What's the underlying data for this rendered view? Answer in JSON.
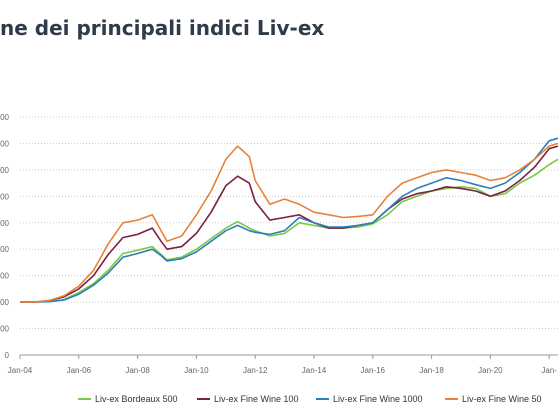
{
  "title": "ne dei principali indici Liv-ex",
  "colors": {
    "bordeaux500": "#7ac943",
    "fineWine100": "#7b1f45",
    "fineWine1000": "#2e7fb8",
    "fineWine50": "#e8823a",
    "grid": "#cccccc",
    "axis": "#999999"
  },
  "chart_data": {
    "type": "line",
    "title": "ne dei principali indici Liv-ex",
    "xlabel": "",
    "ylabel": "",
    "x_ticks": [
      "Jan-04",
      "Jan-06",
      "Jan-08",
      "Jan-10",
      "Jan-12",
      "Jan-14",
      "Jan-16",
      "Jan-18",
      "Jan-20",
      "Jan-"
    ],
    "y_ticks": [
      "0",
      "00",
      "00",
      "00",
      "00",
      "00",
      "00",
      "00",
      "00",
      "00"
    ],
    "xlim": [
      2004.0,
      2022.3
    ],
    "ylim": [
      0,
      450
    ],
    "grid": true,
    "legend": "bottom",
    "series": [
      {
        "name": "Liv-ex Bordeaux 500",
        "colorKey": "bordeaux500",
        "points": [
          [
            2004.0,
            100
          ],
          [
            2004.5,
            100
          ],
          [
            2005.0,
            101
          ],
          [
            2005.5,
            105
          ],
          [
            2006.0,
            118
          ],
          [
            2006.5,
            135
          ],
          [
            2007.0,
            160
          ],
          [
            2007.5,
            192
          ],
          [
            2008.0,
            198
          ],
          [
            2008.5,
            205
          ],
          [
            2008.8,
            190
          ],
          [
            2009.0,
            180
          ],
          [
            2009.5,
            185
          ],
          [
            2010.0,
            200
          ],
          [
            2010.5,
            220
          ],
          [
            2011.0,
            240
          ],
          [
            2011.4,
            252
          ],
          [
            2011.8,
            240
          ],
          [
            2012.0,
            235
          ],
          [
            2012.5,
            225
          ],
          [
            2013.0,
            230
          ],
          [
            2013.5,
            250
          ],
          [
            2014.0,
            245
          ],
          [
            2014.5,
            240
          ],
          [
            2015.0,
            240
          ],
          [
            2015.5,
            242
          ],
          [
            2016.0,
            248
          ],
          [
            2016.5,
            265
          ],
          [
            2017.0,
            290
          ],
          [
            2017.5,
            300
          ],
          [
            2018.0,
            310
          ],
          [
            2018.5,
            315
          ],
          [
            2019.0,
            318
          ],
          [
            2019.5,
            315
          ],
          [
            2020.0,
            300
          ],
          [
            2020.5,
            305
          ],
          [
            2021.0,
            325
          ],
          [
            2021.5,
            340
          ],
          [
            2022.0,
            360
          ],
          [
            2022.3,
            370
          ]
        ]
      },
      {
        "name": "Liv-ex Fine Wine 100",
        "colorKey": "fineWine100",
        "points": [
          [
            2004.0,
            100
          ],
          [
            2004.5,
            100
          ],
          [
            2005.0,
            103
          ],
          [
            2005.5,
            110
          ],
          [
            2006.0,
            125
          ],
          [
            2006.5,
            150
          ],
          [
            2007.0,
            190
          ],
          [
            2007.5,
            222
          ],
          [
            2008.0,
            228
          ],
          [
            2008.5,
            240
          ],
          [
            2008.8,
            215
          ],
          [
            2009.0,
            200
          ],
          [
            2009.5,
            205
          ],
          [
            2010.0,
            230
          ],
          [
            2010.5,
            270
          ],
          [
            2011.0,
            320
          ],
          [
            2011.4,
            338
          ],
          [
            2011.8,
            325
          ],
          [
            2012.0,
            290
          ],
          [
            2012.5,
            255
          ],
          [
            2013.0,
            260
          ],
          [
            2013.5,
            265
          ],
          [
            2014.0,
            250
          ],
          [
            2014.5,
            240
          ],
          [
            2015.0,
            240
          ],
          [
            2015.5,
            245
          ],
          [
            2016.0,
            250
          ],
          [
            2016.5,
            275
          ],
          [
            2017.0,
            295
          ],
          [
            2017.5,
            305
          ],
          [
            2018.0,
            310
          ],
          [
            2018.5,
            318
          ],
          [
            2019.0,
            315
          ],
          [
            2019.5,
            310
          ],
          [
            2020.0,
            300
          ],
          [
            2020.5,
            310
          ],
          [
            2021.0,
            330
          ],
          [
            2021.5,
            355
          ],
          [
            2022.0,
            390
          ],
          [
            2022.3,
            395
          ]
        ]
      },
      {
        "name": "Liv-ex Fine Wine 1000",
        "colorKey": "fineWine1000",
        "points": [
          [
            2004.0,
            100
          ],
          [
            2004.5,
            100
          ],
          [
            2005.0,
            101
          ],
          [
            2005.5,
            104
          ],
          [
            2006.0,
            115
          ],
          [
            2006.5,
            132
          ],
          [
            2007.0,
            155
          ],
          [
            2007.5,
            185
          ],
          [
            2008.0,
            192
          ],
          [
            2008.5,
            200
          ],
          [
            2008.8,
            188
          ],
          [
            2009.0,
            178
          ],
          [
            2009.5,
            182
          ],
          [
            2010.0,
            195
          ],
          [
            2010.5,
            215
          ],
          [
            2011.0,
            235
          ],
          [
            2011.4,
            245
          ],
          [
            2011.8,
            235
          ],
          [
            2012.0,
            232
          ],
          [
            2012.5,
            228
          ],
          [
            2013.0,
            235
          ],
          [
            2013.5,
            260
          ],
          [
            2014.0,
            250
          ],
          [
            2014.5,
            242
          ],
          [
            2015.0,
            242
          ],
          [
            2015.5,
            245
          ],
          [
            2016.0,
            250
          ],
          [
            2016.5,
            275
          ],
          [
            2017.0,
            300
          ],
          [
            2017.5,
            315
          ],
          [
            2018.0,
            325
          ],
          [
            2018.5,
            335
          ],
          [
            2019.0,
            330
          ],
          [
            2019.5,
            322
          ],
          [
            2020.0,
            315
          ],
          [
            2020.5,
            325
          ],
          [
            2021.0,
            345
          ],
          [
            2021.5,
            370
          ],
          [
            2022.0,
            405
          ],
          [
            2022.3,
            410
          ]
        ]
      },
      {
        "name": "Liv-ex Fine Wine 50",
        "colorKey": "fineWine50",
        "points": [
          [
            2004.0,
            100
          ],
          [
            2004.5,
            100
          ],
          [
            2005.0,
            103
          ],
          [
            2005.5,
            112
          ],
          [
            2006.0,
            130
          ],
          [
            2006.5,
            160
          ],
          [
            2007.0,
            210
          ],
          [
            2007.5,
            250
          ],
          [
            2008.0,
            255
          ],
          [
            2008.5,
            265
          ],
          [
            2008.8,
            235
          ],
          [
            2009.0,
            215
          ],
          [
            2009.5,
            225
          ],
          [
            2010.0,
            265
          ],
          [
            2010.5,
            310
          ],
          [
            2011.0,
            370
          ],
          [
            2011.4,
            395
          ],
          [
            2011.8,
            375
          ],
          [
            2012.0,
            330
          ],
          [
            2012.5,
            285
          ],
          [
            2013.0,
            295
          ],
          [
            2013.5,
            285
          ],
          [
            2014.0,
            270
          ],
          [
            2014.5,
            265
          ],
          [
            2015.0,
            260
          ],
          [
            2015.5,
            262
          ],
          [
            2016.0,
            265
          ],
          [
            2016.5,
            300
          ],
          [
            2017.0,
            325
          ],
          [
            2017.5,
            335
          ],
          [
            2018.0,
            345
          ],
          [
            2018.5,
            350
          ],
          [
            2019.0,
            345
          ],
          [
            2019.5,
            340
          ],
          [
            2020.0,
            330
          ],
          [
            2020.5,
            335
          ],
          [
            2021.0,
            350
          ],
          [
            2021.5,
            370
          ],
          [
            2022.0,
            395
          ],
          [
            2022.3,
            400
          ]
        ]
      }
    ]
  }
}
